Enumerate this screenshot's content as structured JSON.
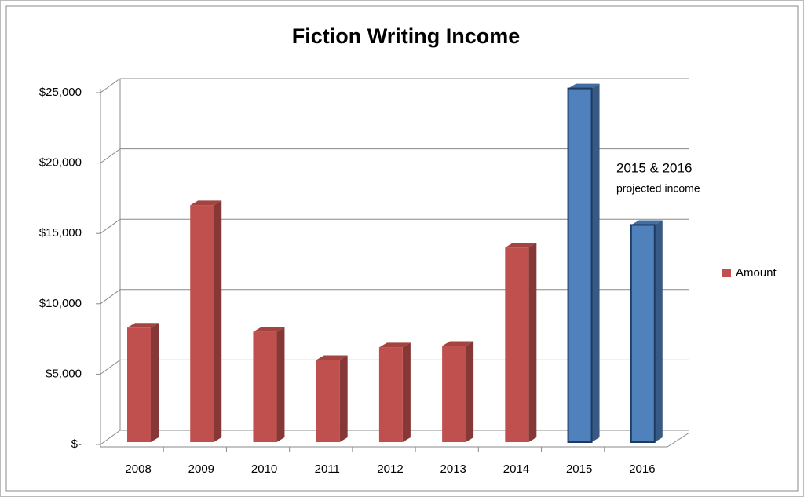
{
  "chart_data": {
    "type": "bar3d",
    "title": "Fiction Writing Income",
    "categories": [
      "2008",
      "2009",
      "2010",
      "2011",
      "2012",
      "2013",
      "2014",
      "2015",
      "2016"
    ],
    "series": [
      {
        "name": "Amount",
        "color": "#c0504d",
        "values": [
          8300,
          17000,
          8000,
          6000,
          6900,
          7000,
          14000,
          25300,
          15600
        ]
      }
    ],
    "bar_colors": [
      "#c0504d",
      "#c0504d",
      "#c0504d",
      "#c0504d",
      "#c0504d",
      "#c0504d",
      "#c0504d",
      "#4f81bd",
      "#4f81bd"
    ],
    "ylim": [
      0,
      25000
    ],
    "yticks": [
      {
        "value": 0,
        "label": "$-"
      },
      {
        "value": 5000,
        "label": "$5,000"
      },
      {
        "value": 10000,
        "label": "$10,000"
      },
      {
        "value": 15000,
        "label": "$15,000"
      },
      {
        "value": 20000,
        "label": "$20,000"
      },
      {
        "value": 25000,
        "label": "$25,000"
      }
    ],
    "grid": true,
    "legend": "right",
    "annotation": {
      "title": "2015 & 2016",
      "subtitle": "projected income"
    }
  }
}
